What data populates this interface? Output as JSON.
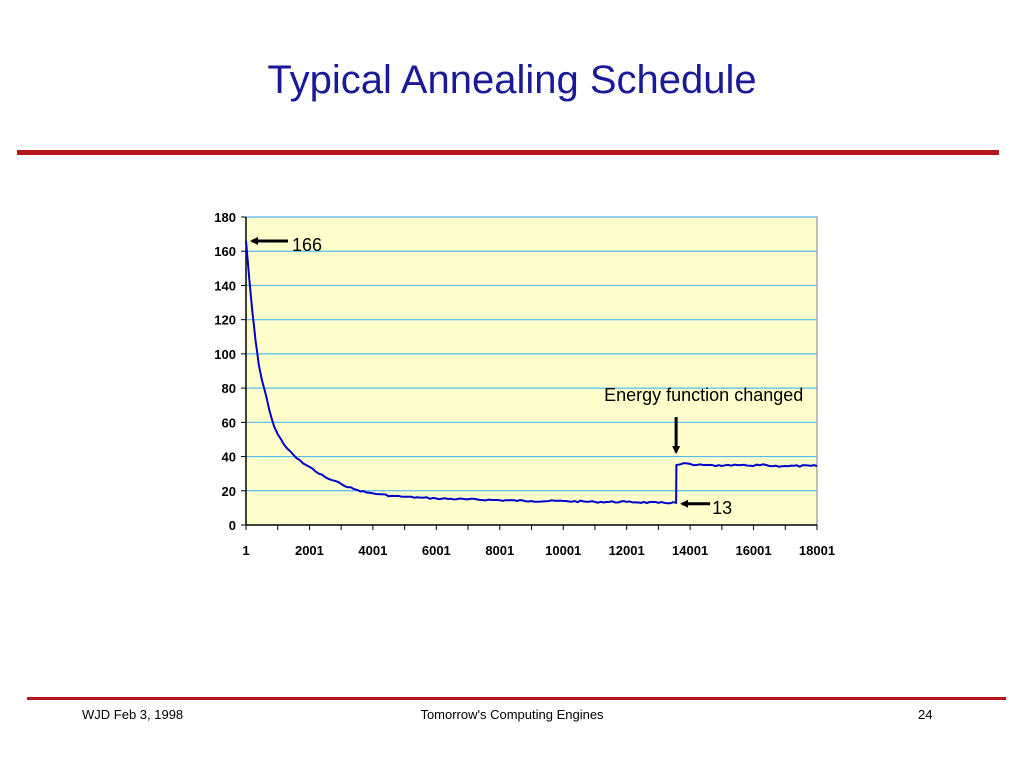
{
  "slide": {
    "title": "Typical Annealing Schedule",
    "colors": {
      "title": "#1a1a99",
      "rule": "#b3171a",
      "plot_bg": "#ffffcc",
      "grid": "#55bbee",
      "line": "#0000cc"
    }
  },
  "footer": {
    "left": "WJD Feb 3, 1998",
    "center": "Tomorrow's Computing Engines",
    "right": "24"
  },
  "chart_data": {
    "type": "line",
    "title": "",
    "xlabel": "",
    "ylabel": "",
    "xlim": [
      1,
      18001
    ],
    "ylim": [
      0,
      180
    ],
    "x_ticks": [
      "1",
      "2001",
      "4001",
      "6001",
      "8001",
      "10001",
      "12001",
      "14001",
      "16001",
      "18001"
    ],
    "y_ticks": [
      "0",
      "20",
      "40",
      "60",
      "80",
      "100",
      "120",
      "140",
      "160",
      "180"
    ],
    "grid": true,
    "legend": "none",
    "series": [
      {
        "x": [
          1,
          100,
          200,
          300,
          400,
          500,
          600,
          700,
          800,
          900,
          1000,
          1200,
          1400,
          1600,
          1800,
          2000,
          2300,
          2600,
          3000,
          3400,
          3800,
          4200,
          4600,
          5000,
          5500,
          6000,
          7000,
          8000,
          9000,
          10000,
          11000,
          12000,
          13000,
          13560,
          13570,
          13700,
          13900,
          14100,
          14500,
          15000,
          15500,
          16000,
          16300,
          16500,
          17000,
          18000
        ],
        "y": [
          166,
          145,
          125,
          108,
          94,
          85,
          78,
          70,
          63,
          57,
          53,
          47,
          43,
          39,
          36,
          34,
          30,
          27,
          24,
          21,
          19,
          18,
          17,
          16.5,
          16,
          15.5,
          15,
          14.5,
          14,
          14,
          13.5,
          13.5,
          13,
          13,
          35,
          35.5,
          36,
          35,
          35,
          34.5,
          35,
          34.5,
          35.5,
          34.5,
          34.5,
          34.5
        ]
      }
    ],
    "annotations": [
      {
        "text": "166",
        "x": 1,
        "y": 166
      },
      {
        "text": "Energy function changed",
        "x": 13560,
        "y": 35
      },
      {
        "text": "13",
        "x": 13560,
        "y": 13
      }
    ]
  }
}
